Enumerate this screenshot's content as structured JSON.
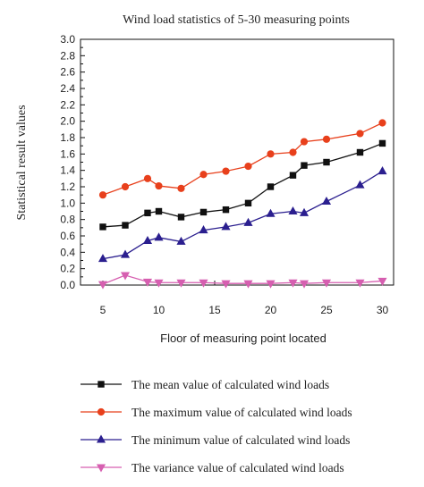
{
  "chart_data": {
    "type": "line",
    "title": "Wind load statistics of 5-30 measuring points",
    "xlabel": "Floor of measuring point located",
    "ylabel": "Statistical result values",
    "xlim": [
      3,
      31
    ],
    "ylim": [
      0.0,
      3.0
    ],
    "xticks": [
      "5",
      "10",
      "15",
      "20",
      "25",
      "30"
    ],
    "xtick_values": [
      5,
      10,
      15,
      20,
      25,
      30
    ],
    "yticks": [
      "0.0",
      "0.2",
      "0.4",
      "0.6",
      "0.8",
      "1.0",
      "1.2",
      "1.4",
      "1.6",
      "1.8",
      "2.0",
      "2.2",
      "2.4",
      "2.6",
      "2.8",
      "3.0"
    ],
    "ytick_values": [
      0.0,
      0.2,
      0.4,
      0.6,
      0.8,
      1.0,
      1.2,
      1.4,
      1.6,
      1.8,
      2.0,
      2.2,
      2.4,
      2.6,
      2.8,
      3.0
    ],
    "legend_position": "bottom",
    "series": [
      {
        "name": "The mean value of calculated wind loads",
        "color": "#111111",
        "marker": "square",
        "x": [
          5,
          7,
          9,
          10,
          12,
          14,
          16,
          18,
          20,
          22,
          23,
          25,
          28,
          30
        ],
        "values": [
          0.71,
          0.73,
          0.88,
          0.9,
          0.83,
          0.89,
          0.92,
          1.0,
          1.2,
          1.34,
          1.46,
          1.5,
          1.62,
          1.73
        ]
      },
      {
        "name": "The maximum value of calculated wind loads",
        "color": "#e8401c",
        "marker": "circle",
        "x": [
          5,
          7,
          9,
          10,
          12,
          14,
          16,
          18,
          20,
          22,
          23,
          25,
          28,
          30
        ],
        "values": [
          1.1,
          1.2,
          1.3,
          1.21,
          1.18,
          1.35,
          1.39,
          1.45,
          1.6,
          1.62,
          1.75,
          1.78,
          1.85,
          1.98
        ]
      },
      {
        "name": "The minimum value of calculated wind loads",
        "color": "#2b1f8f",
        "marker": "triangle-up",
        "x": [
          5,
          7,
          9,
          10,
          12,
          14,
          16,
          18,
          20,
          22,
          23,
          25,
          28,
          30
        ],
        "values": [
          0.32,
          0.37,
          0.54,
          0.58,
          0.53,
          0.67,
          0.71,
          0.76,
          0.87,
          0.9,
          0.88,
          1.02,
          1.22,
          1.39
        ]
      },
      {
        "name": "The variance value of calculated wind loads",
        "color": "#d65fb0",
        "marker": "triangle-down",
        "x": [
          5,
          7,
          9,
          10,
          12,
          14,
          16,
          18,
          20,
          22,
          23,
          25,
          28,
          30
        ],
        "values": [
          0.01,
          0.12,
          0.04,
          0.03,
          0.03,
          0.03,
          0.02,
          0.02,
          0.02,
          0.03,
          0.02,
          0.03,
          0.03,
          0.05
        ]
      }
    ]
  }
}
